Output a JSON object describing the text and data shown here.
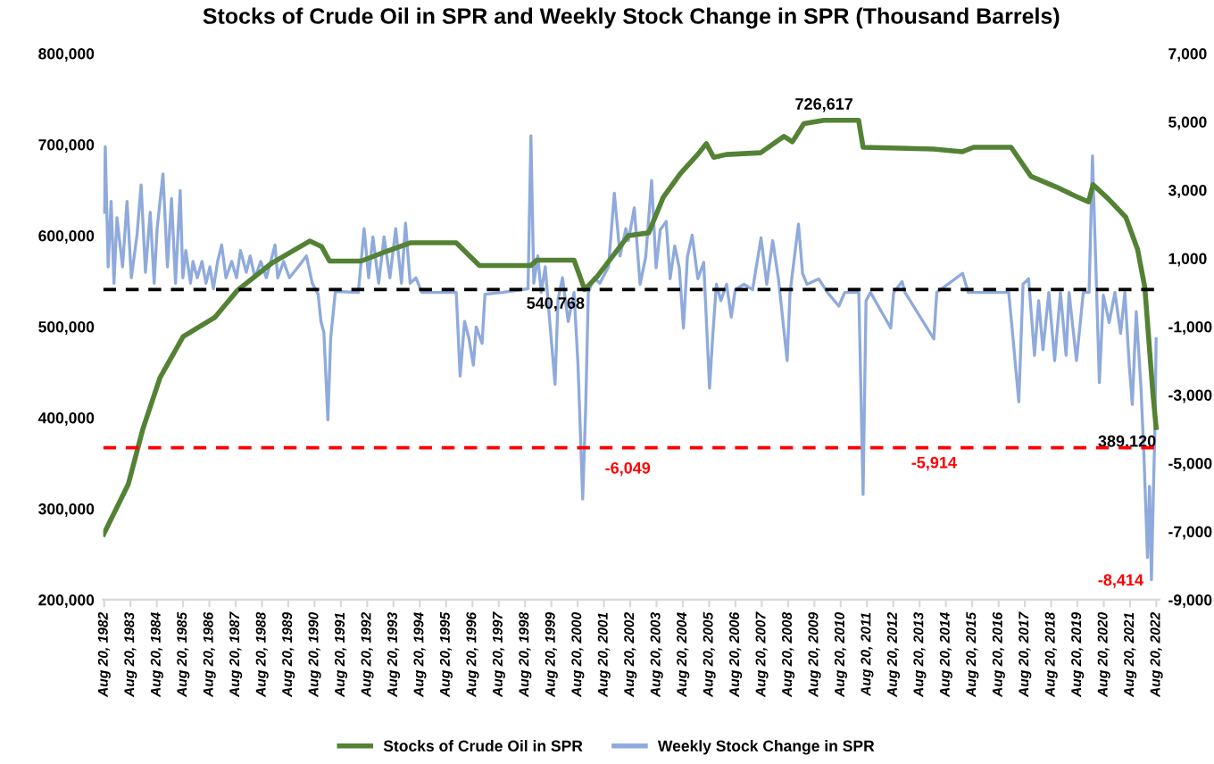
{
  "chart_data": {
    "type": "line",
    "title": "Stocks of Crude Oil in SPR and Weekly Stock Change in SPR (Thousand Barrels)",
    "xlim": [
      "1982-08-07",
      "2022-10-01"
    ],
    "xticks": [
      {
        "value": "1982-08-20",
        "label": "Aug 20, 1982"
      },
      {
        "value": "1983-08-20",
        "label": "Aug 20, 1983"
      },
      {
        "value": "1984-08-20",
        "label": "Aug 20, 1984"
      },
      {
        "value": "1985-08-20",
        "label": "Aug 20, 1985"
      },
      {
        "value": "1986-08-20",
        "label": "Aug 20, 1986"
      },
      {
        "value": "1987-08-20",
        "label": "Aug 20, 1987"
      },
      {
        "value": "1988-08-20",
        "label": "Aug 20, 1988"
      },
      {
        "value": "1989-08-20",
        "label": "Aug 20, 1989"
      },
      {
        "value": "1990-08-20",
        "label": "Aug 20, 1990"
      },
      {
        "value": "1991-08-20",
        "label": "Aug 20, 1991"
      },
      {
        "value": "1992-08-20",
        "label": "Aug 20, 1992"
      },
      {
        "value": "1993-08-20",
        "label": "Aug 20, 1993"
      },
      {
        "value": "1994-08-20",
        "label": "Aug 20, 1994"
      },
      {
        "value": "1995-08-20",
        "label": "Aug 20, 1995"
      },
      {
        "value": "1996-08-20",
        "label": "Aug 20, 1996"
      },
      {
        "value": "1997-08-20",
        "label": "Aug 20, 1997"
      },
      {
        "value": "1998-08-20",
        "label": "Aug 20, 1998"
      },
      {
        "value": "1999-08-20",
        "label": "Aug 20, 1999"
      },
      {
        "value": "2000-08-20",
        "label": "Aug 20, 2000"
      },
      {
        "value": "2001-08-20",
        "label": "Aug 20, 2001"
      },
      {
        "value": "2002-08-20",
        "label": "Aug 20, 2002"
      },
      {
        "value": "2003-08-20",
        "label": "Aug 20, 2003"
      },
      {
        "value": "2004-08-20",
        "label": "Aug 20, 2004"
      },
      {
        "value": "2005-08-20",
        "label": "Aug 20, 2005"
      },
      {
        "value": "2006-08-20",
        "label": "Aug 20, 2006"
      },
      {
        "value": "2007-08-20",
        "label": "Aug 20, 2007"
      },
      {
        "value": "2008-08-20",
        "label": "Aug 20, 2008"
      },
      {
        "value": "2009-08-20",
        "label": "Aug 20, 2009"
      },
      {
        "value": "2010-08-20",
        "label": "Aug 20, 2010"
      },
      {
        "value": "2011-08-20",
        "label": "Aug 20, 2011"
      },
      {
        "value": "2012-08-20",
        "label": "Aug 20, 2012"
      },
      {
        "value": "2013-08-20",
        "label": "Aug 20, 2013"
      },
      {
        "value": "2014-08-20",
        "label": "Aug 20, 2014"
      },
      {
        "value": "2015-08-20",
        "label": "Aug 20, 2015"
      },
      {
        "value": "2016-08-20",
        "label": "Aug 20, 2016"
      },
      {
        "value": "2017-08-20",
        "label": "Aug 20, 2017"
      },
      {
        "value": "2018-08-20",
        "label": "Aug 20, 2018"
      },
      {
        "value": "2019-08-20",
        "label": "Aug 20, 2019"
      },
      {
        "value": "2020-08-20",
        "label": "Aug 20, 2020"
      },
      {
        "value": "2021-08-20",
        "label": "Aug 20, 2021"
      },
      {
        "value": "2022-08-20",
        "label": "Aug 20, 2022"
      }
    ],
    "ylim": [
      200000,
      800000
    ],
    "yticks": [
      {
        "value": 200000,
        "label": "200,000"
      },
      {
        "value": 300000,
        "label": "300,000"
      },
      {
        "value": 400000,
        "label": "400,000"
      },
      {
        "value": 500000,
        "label": "500,000"
      },
      {
        "value": 600000,
        "label": "600,000"
      },
      {
        "value": 700000,
        "label": "700,000"
      },
      {
        "value": 800000,
        "label": "800,000"
      }
    ],
    "y2lim": [
      -9000,
      7000
    ],
    "y2ticks": [
      {
        "value": -9000,
        "label": "-9,000"
      },
      {
        "value": -7000,
        "label": "-7,000"
      },
      {
        "value": -5000,
        "label": "-5,000"
      },
      {
        "value": -3000,
        "label": "-3,000"
      },
      {
        "value": -1000,
        "label": "-1,000"
      },
      {
        "value": 1000,
        "label": "1,000"
      },
      {
        "value": 3000,
        "label": "3,000"
      },
      {
        "value": 5000,
        "label": "5,000"
      },
      {
        "value": 7000,
        "label": "7,000"
      }
    ],
    "grid": false,
    "legend": "bottom",
    "marker": "none",
    "line_style": "solid",
    "ref_lines": [
      {
        "axis": "y",
        "value": 540768,
        "color": "#000000",
        "line_style": "dashed"
      },
      {
        "axis": "y",
        "value": 367000,
        "color": "#ff0000",
        "line_style": "dashed"
      }
    ],
    "annotations": [
      {
        "text": "540,768",
        "x": "2000-11-25",
        "y": 540768
      },
      {
        "text": "726,617",
        "x": "2010-01-01",
        "y": 726617
      },
      {
        "text": "389,120",
        "x": "2022-08-17",
        "y": 389120
      },
      "-6,049",
      "-5,914",
      "-8,414"
    ],
    "series": [
      {
        "name": "Stocks of Crude Oil in SPR",
        "color": "#548235",
        "axis": "y",
        "x": [
          "1982-08-14",
          "1983-07-22",
          "1984-02-07",
          "1984-10-04",
          "1985-08-21",
          "1986-11-03",
          "1987-09-16",
          "1989-01-08",
          "1990-06-13",
          "1990-11-25",
          "1991-03-16",
          "1992-05-28",
          "1993-05-25",
          "1994-04-08",
          "1996-01-08",
          "1996-11-25",
          "1998-11-10",
          "1999-01-29",
          "2000-07-01",
          "2000-11-25",
          "2001-05-17",
          "2002-07-26",
          "2003-05-03",
          "2003-11-21",
          "2004-07-15",
          "2005-03-13",
          "2005-07-11",
          "2005-10-22",
          "2006-04-15",
          "2007-08-07",
          "2008-06-23",
          "2008-10-19",
          "2009-03-27",
          "2010-01-01",
          "2011-04-26",
          "2011-06-27",
          "2014-02-28",
          "2015-04-01",
          "2015-09-09",
          "2017-02-10",
          "2017-11-14",
          "2018-11-10",
          "2019-07-04",
          "2020-01-22",
          "2020-03-23",
          "2020-10-26",
          "2021-06-23",
          "2021-12-02",
          "2022-03-13",
          "2022-07-04",
          "2022-08-17"
        ],
        "values": [
          272000,
          327000,
          387000,
          444000,
          489000,
          510000,
          540000,
          570000,
          594000,
          588000,
          572000,
          572000,
          583000,
          592000,
          592000,
          567000,
          567000,
          573000,
          573000,
          540768,
          555000,
          600000,
          603000,
          642000,
          668000,
          689000,
          701000,
          686000,
          689000,
          691000,
          709000,
          703000,
          723000,
          726617,
          726617,
          697000,
          695000,
          692000,
          697000,
          697000,
          665000,
          653000,
          644000,
          637000,
          656000,
          640000,
          620000,
          585000,
          543000,
          426000,
          389120
        ]
      },
      {
        "name": "Weekly Stock Change in SPR",
        "color": "#8faadc",
        "axis": "y2",
        "x": [
          "1982-08-20",
          "1982-09-05",
          "1982-10-15",
          "1982-11-25",
          "1983-01-04",
          "1983-02-14",
          "1983-05-03",
          "1983-07-04",
          "1983-09-02",
          "1983-11-21",
          "1984-01-15",
          "1984-03-16",
          "1984-05-21",
          "1984-07-15",
          "1984-08-25",
          "1984-11-14",
          "1985-01-15",
          "1985-03-13",
          "1985-05-07",
          "1985-07-11",
          "1985-08-17",
          "1985-09-27",
          "1985-12-02",
          "1986-01-04",
          "1986-03-05",
          "1986-05-10",
          "1986-07-04",
          "1986-08-28",
          "1986-10-15",
          "1986-12-13",
          "1987-02-07",
          "1987-04-08",
          "1987-06-27",
          "1987-09-02",
          "1987-10-26",
          "1988-01-15",
          "1988-03-09",
          "1988-05-14",
          "1988-08-03",
          "1988-10-19",
          "1989-01-08",
          "1989-02-17",
          "1989-03-27",
          "1989-06-16",
          "1989-09-05",
          "1990-01-04",
          "1990-04-29",
          "1990-07-19",
          "1990-10-08",
          "1990-11-17",
          "1990-12-27",
          "1991-02-21",
          "1991-04-01",
          "1991-06-05",
          "1992-04-19",
          "1992-07-08",
          "1992-09-09",
          "1992-11-07",
          "1993-01-26",
          "1993-04-11",
          "1993-07-01",
          "1993-09-20",
          "1993-12-09",
          "1994-02-03",
          "1994-04-08",
          "1994-06-27",
          "1994-09-16",
          "1996-01-08",
          "1996-03-02",
          "1996-05-03",
          "1996-07-01",
          "1996-09-02",
          "1996-10-11",
          "1997-01-01",
          "1997-02-10",
          "1997-10-08",
          "1998-10-01",
          "1998-11-10",
          "1998-12-20",
          "1999-02-14",
          "1999-04-01",
          "1999-05-28",
          "1999-07-29",
          "1999-10-11",
          "1999-11-21",
          "2000-01-22",
          "2000-04-11",
          "2000-07-01",
          "2000-08-25",
          "2000-10-29",
          "2000-12-09",
          "2001-01-15",
          "2001-04-04",
          "2001-06-23",
          "2001-10-22",
          "2002-01-11",
          "2002-04-01",
          "2002-06-20",
          "2002-07-26",
          "2002-10-15",
          "2003-01-04",
          "2003-03-23",
          "2003-06-13",
          "2003-08-14",
          "2003-10-11",
          "2004-01-01",
          "2004-02-25",
          "2004-04-29",
          "2004-07-01",
          "2004-08-28",
          "2004-10-22",
          "2004-12-27",
          "2005-03-16",
          "2005-06-05",
          "2005-08-25",
          "2005-10-11",
          "2005-11-28",
          "2006-01-29",
          "2006-04-19",
          "2006-06-23",
          "2006-08-17",
          "2006-12-16",
          "2007-04-15",
          "2007-08-10",
          "2007-10-29",
          "2008-01-19",
          "2008-04-08",
          "2008-08-07",
          "2008-09-16",
          "2009-01-11",
          "2009-03-09",
          "2009-05-10",
          "2009-10-19",
          "2010-02-17",
          "2010-07-26",
          "2010-10-15",
          "2011-04-29",
          "2011-06-27",
          "2011-08-07",
          "2011-10-08",
          "2012-07-15",
          "2012-08-25",
          "2012-12-20",
          "2013-01-29",
          "2014-03-05",
          "2014-04-15",
          "2015-04-08",
          "2015-06-27",
          "2017-01-08",
          "2017-02-17",
          "2017-05-28",
          "2017-07-26",
          "2017-10-11",
          "2018-01-01",
          "2018-02-28",
          "2018-04-29",
          "2018-07-19",
          "2018-10-08",
          "2018-12-27",
          "2019-03-16",
          "2019-04-26",
          "2019-08-07",
          "2019-11-10",
          "2020-01-29",
          "2020-03-16",
          "2020-05-03",
          "2020-06-20",
          "2020-08-14",
          "2020-11-03",
          "2021-01-22",
          "2021-04-11",
          "2021-06-09",
          "2021-08-10",
          "2021-09-20",
          "2021-11-14",
          "2022-01-19",
          "2022-02-28",
          "2022-04-19",
          "2022-05-17",
          "2022-06-13",
          "2022-07-08",
          "2022-08-01",
          "2022-08-17"
        ],
        "values": [
          2350,
          4270,
          750,
          2670,
          270,
          2190,
          750,
          2670,
          430,
          1710,
          3150,
          590,
          2350,
          270,
          1870,
          3470,
          750,
          2750,
          270,
          2990,
          430,
          1230,
          270,
          910,
          430,
          910,
          270,
          750,
          110,
          910,
          1390,
          430,
          910,
          430,
          1230,
          590,
          1070,
          430,
          910,
          430,
          1070,
          1390,
          430,
          910,
          430,
          750,
          1070,
          270,
          -50,
          -850,
          -1170,
          -3730,
          -1330,
          30,
          0,
          1870,
          430,
          1630,
          270,
          1630,
          430,
          1870,
          270,
          2030,
          270,
          430,
          0,
          0,
          -2450,
          -850,
          -1330,
          -2130,
          -1010,
          -1490,
          -50,
          0,
          110,
          4590,
          270,
          1070,
          0,
          750,
          -850,
          -2690,
          -210,
          430,
          -850,
          0,
          -2130,
          -6049,
          -3410,
          0,
          430,
          270,
          750,
          2910,
          1070,
          1870,
          1520,
          2480,
          240,
          1040,
          3280,
          720,
          1840,
          2080,
          400,
          1360,
          720,
          -1040,
          1040,
          1680,
          400,
          880,
          -2800,
          -1200,
          240,
          -240,
          240,
          -720,
          80,
          240,
          80,
          1600,
          240,
          1520,
          400,
          -2000,
          0,
          2000,
          560,
          240,
          400,
          0,
          -400,
          0,
          0,
          -5914,
          -240,
          0,
          -1040,
          0,
          320,
          0,
          -1360,
          0,
          560,
          0,
          0,
          -880,
          -3200,
          240,
          400,
          -1840,
          -240,
          -1680,
          0,
          -2000,
          0,
          -1840,
          0,
          -2000,
          0,
          0,
          4000,
          720,
          -2640,
          -80,
          -880,
          0,
          -1200,
          0,
          -2160,
          -3280,
          -560,
          -2800,
          -4720,
          -7760,
          -5680,
          -8414,
          -6000,
          -3920,
          -1360
        ]
      }
    ]
  }
}
